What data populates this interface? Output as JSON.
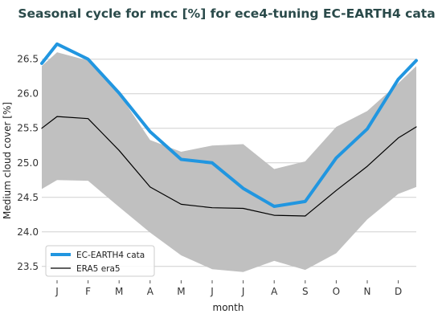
{
  "chart_data": {
    "type": "line",
    "title": "Seasonal cycle for mcc [%] for ece4-tuning EC-EARTH4 cata",
    "xlabel": "month",
    "ylabel": "Medium cloud cover [%]",
    "categories": [
      "J",
      "F",
      "M",
      "A",
      "M",
      "J",
      "J",
      "A",
      "S",
      "O",
      "N",
      "D"
    ],
    "yticks": [
      "23.5",
      "24.0",
      "24.5",
      "25.0",
      "25.5",
      "26.0",
      "26.5"
    ],
    "ylim": [
      23.3,
      26.95
    ],
    "grid": "horizontal",
    "legend_position": "bottom-left",
    "series": [
      {
        "name": "EC-EARTH4 cata",
        "color": "#2196e0",
        "values": [
          26.72,
          26.5,
          26.01,
          25.45,
          25.05,
          25.0,
          24.63,
          24.37,
          24.44,
          25.07,
          25.49,
          26.21
        ]
      },
      {
        "name": "ERA5 era5",
        "color": "#000000",
        "values": [
          25.67,
          25.64,
          25.18,
          24.65,
          24.4,
          24.35,
          24.34,
          24.24,
          24.23,
          24.6,
          24.95,
          25.36
        ]
      }
    ],
    "band": {
      "color": "#c0c0c0",
      "upper": [
        26.6,
        26.48,
        26.0,
        25.33,
        25.16,
        25.25,
        25.27,
        24.91,
        25.02,
        25.52,
        25.75,
        26.15
      ],
      "lower": [
        24.75,
        24.74,
        24.36,
        23.99,
        23.66,
        23.46,
        23.42,
        23.58,
        23.45,
        23.69,
        24.18,
        24.55
      ],
      "start_upper": 26.4,
      "start_lower": 24.62,
      "end_upper": 26.4,
      "end_lower": 24.65
    },
    "start_values": {
      "EC-EARTH4 cata": 26.44,
      "ERA5 era5": 25.5
    },
    "end_values": {
      "EC-EARTH4 cata": 26.48,
      "ERA5 era5": 25.52
    }
  }
}
